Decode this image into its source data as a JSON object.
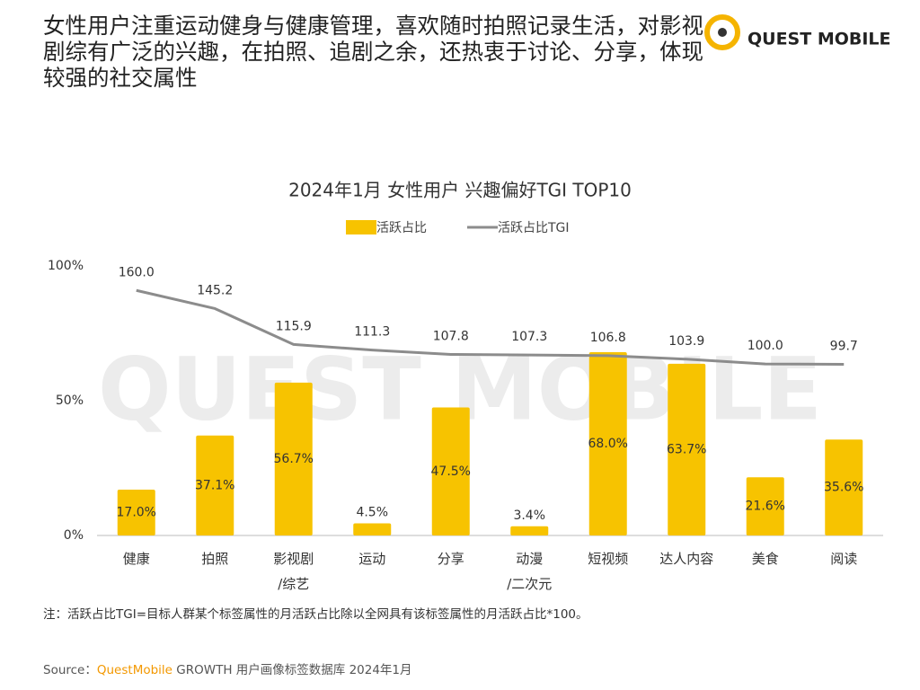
{
  "header": {
    "title": "女性用户注重运动健身与健康管理，喜欢随时拍照记录生活，对影视剧综有广泛的兴趣，在拍照、追剧之余，还热衷于讨论、分享，体现较强的社交属性"
  },
  "logo": {
    "text": "QUEST MOBILE"
  },
  "watermark": "QUEST MOBILE",
  "chart_data": {
    "type": "bar",
    "title": "2024年1月 女性用户 兴趣偏好TGI TOP10",
    "categories": [
      "健康",
      "拍照",
      "影视剧\n/综艺",
      "运动",
      "分享",
      "动漫\n/二次元",
      "短视频",
      "达人内容",
      "美食",
      "阅读"
    ],
    "series": [
      {
        "name": "活跃占比",
        "type": "bar",
        "color": "#f7c300",
        "values": [
          17.0,
          37.1,
          56.7,
          4.5,
          47.5,
          3.4,
          68.0,
          63.7,
          21.6,
          35.6
        ],
        "value_labels": [
          "17.0%",
          "37.1%",
          "56.7%",
          "4.5%",
          "47.5%",
          "3.4%",
          "68.0%",
          "63.7%",
          "21.6%",
          "35.6%"
        ]
      },
      {
        "name": "活跃占比TGI",
        "type": "line",
        "axis": "y2",
        "color": "#8c8c8c",
        "values": [
          160.0,
          145.2,
          115.9,
          111.3,
          107.8,
          107.3,
          106.8,
          103.9,
          100.0,
          99.7
        ],
        "value_labels": [
          "160.0",
          "145.2",
          "115.9",
          "111.3",
          "107.8",
          "107.3",
          "106.8",
          "103.9",
          "100.0",
          "99.7"
        ]
      }
    ],
    "ylim": [
      0,
      100
    ],
    "yticks": [
      {
        "value": 0,
        "label": "0%"
      },
      {
        "value": 50,
        "label": "50%"
      },
      {
        "value": 100,
        "label": "100%"
      }
    ],
    "y2lim": [
      -40,
      180
    ],
    "legend": "top"
  },
  "note": "注：活跃占比TGI=目标人群某个标签属性的月活跃占比除以全网具有该标签属性的月活跃占比*100。",
  "source": {
    "prefix": "Source：",
    "brand": "QuestMobile",
    "text": " GROWTH 用户画像标签数据库 2024年1月"
  }
}
